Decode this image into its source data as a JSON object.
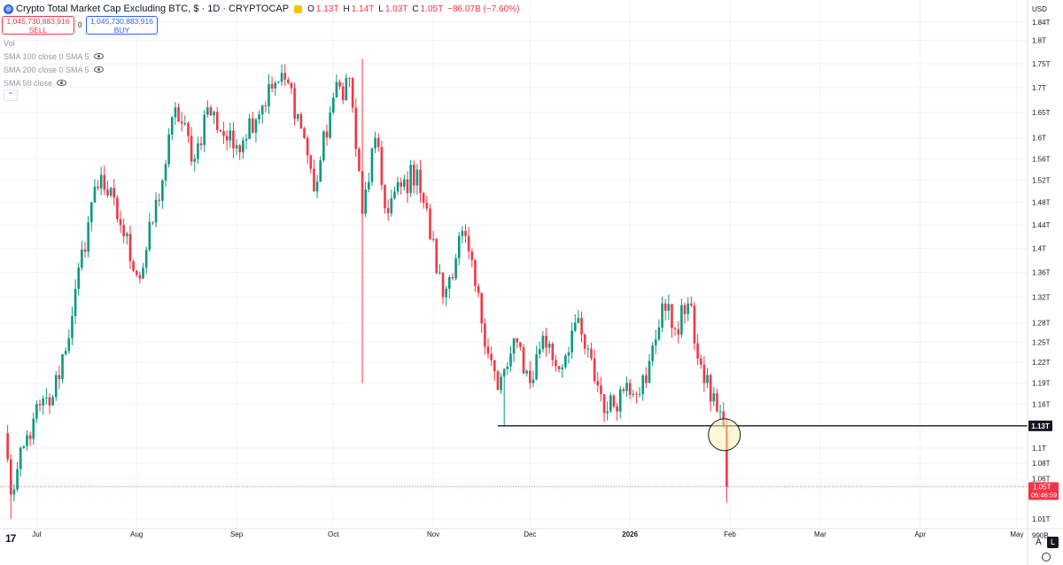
{
  "header": {
    "title": "Crypto Total Market Cap Excluding BTC, $ · 1D · CRYPTOCAP",
    "logo_glyph": "◎",
    "o_label": "O",
    "o_value": "1.13T",
    "h_label": "H",
    "h_value": "1.14T",
    "l_label": "L",
    "l_value": "1.03T",
    "c_label": "C",
    "c_value": "1.05T",
    "change": "−86.07B (−7.60%)"
  },
  "trade": {
    "sell_price": "1,045,730,883,916",
    "sell_label": "SELL",
    "spread": "0",
    "buy_price": "1,045,730,883,916",
    "buy_label": "BUY"
  },
  "indicators": [
    {
      "label": "Vol"
    },
    {
      "label": "SMA 100 close 0 SMA 5"
    },
    {
      "label": "SMA 200 close 0 SMA 5"
    },
    {
      "label": "SMA 50 close"
    }
  ],
  "toolbar": {
    "currency": "USD",
    "auto_label": "A",
    "log_label": "L"
  },
  "colors": {
    "up": "#089981",
    "down": "#f23645",
    "grid": "#f0f3fa",
    "line": "#131722",
    "highlight": "#fff3b0"
  },
  "chart_data": {
    "type": "candlestick",
    "title": "Crypto Total Market Cap Excluding BTC, $ · 1D · CRYPTOCAP",
    "scale": "log",
    "yunit": "USD (trillions)",
    "ylim": [
      0.98,
      1.85
    ],
    "y_ticks": [
      "1.84T",
      "1.8T",
      "1.75T",
      "1.7T",
      "1.65T",
      "1.6T",
      "1.56T",
      "1.52T",
      "1.48T",
      "1.44T",
      "1.4T",
      "1.36T",
      "1.32T",
      "1.28T",
      "1.25T",
      "1.22T",
      "1.19T",
      "1.16T",
      "1.1T",
      "1.08T",
      "1.06T",
      "1.01T",
      "990B"
    ],
    "x_ticks": [
      "Jul",
      "Aug",
      "Sep",
      "Oct",
      "Nov",
      "Dec",
      "2026",
      "Feb",
      "Mar",
      "Apr",
      "May"
    ],
    "horizontal_line": {
      "value": 1.13,
      "label": "1.13T"
    },
    "last_price": {
      "label": "1.05T",
      "countdown": "06:46:59"
    },
    "grid": true,
    "anchors": [
      {
        "date": "2025-06-21",
        "close": 1.12
      },
      {
        "date": "2025-06-23",
        "close": 1.04
      },
      {
        "date": "2025-06-30",
        "close": 1.14
      },
      {
        "date": "2025-07-06",
        "close": 1.17
      },
      {
        "date": "2025-07-12",
        "close": 1.29
      },
      {
        "date": "2025-07-18",
        "close": 1.48
      },
      {
        "date": "2025-07-21",
        "close": 1.53
      },
      {
        "date": "2025-07-27",
        "close": 1.44
      },
      {
        "date": "2025-08-02",
        "close": 1.35
      },
      {
        "date": "2025-08-10",
        "close": 1.55
      },
      {
        "date": "2025-08-13",
        "close": 1.66
      },
      {
        "date": "2025-08-19",
        "close": 1.56
      },
      {
        "date": "2025-08-23",
        "close": 1.66
      },
      {
        "date": "2025-08-31",
        "close": 1.58
      },
      {
        "date": "2025-09-13",
        "close": 1.71
      },
      {
        "date": "2025-09-17",
        "close": 1.71
      },
      {
        "date": "2025-09-22",
        "close": 1.6
      },
      {
        "date": "2025-09-25",
        "close": 1.5
      },
      {
        "date": "2025-10-01",
        "close": 1.68
      },
      {
        "date": "2025-10-06",
        "close": 1.72
      },
      {
        "date": "2025-10-10",
        "close": 1.46
      },
      {
        "date": "2025-10-14",
        "close": 1.6
      },
      {
        "date": "2025-10-17",
        "close": 1.47
      },
      {
        "date": "2025-10-27",
        "close": 1.54
      },
      {
        "date": "2025-11-04",
        "close": 1.32
      },
      {
        "date": "2025-11-10",
        "close": 1.43
      },
      {
        "date": "2025-11-21",
        "close": 1.18
      },
      {
        "date": "2025-11-27",
        "close": 1.25
      },
      {
        "date": "2025-12-01",
        "close": 1.19
      },
      {
        "date": "2025-12-05",
        "close": 1.26
      },
      {
        "date": "2025-12-10",
        "close": 1.21
      },
      {
        "date": "2025-12-15",
        "close": 1.28
      },
      {
        "date": "2025-12-25",
        "close": 1.15
      },
      {
        "date": "2025-12-31",
        "close": 1.19
      },
      {
        "date": "2026-01-06",
        "close": 1.19
      },
      {
        "date": "2026-01-11",
        "close": 1.31
      },
      {
        "date": "2026-01-15",
        "close": 1.27
      },
      {
        "date": "2026-01-19",
        "close": 1.31
      },
      {
        "date": "2026-01-24",
        "close": 1.19
      },
      {
        "date": "2026-01-29",
        "close": 1.15
      },
      {
        "date": "2026-01-30",
        "close": 1.13
      },
      {
        "date": "2026-01-31",
        "close": 1.05
      }
    ],
    "wicks": [
      {
        "date": "2025-06-23",
        "low": 1.01
      },
      {
        "date": "2025-10-10",
        "low": 1.19,
        "high": 1.76
      },
      {
        "date": "2025-11-23",
        "low": 1.13
      },
      {
        "date": "2026-01-31",
        "low": 1.03
      }
    ]
  }
}
